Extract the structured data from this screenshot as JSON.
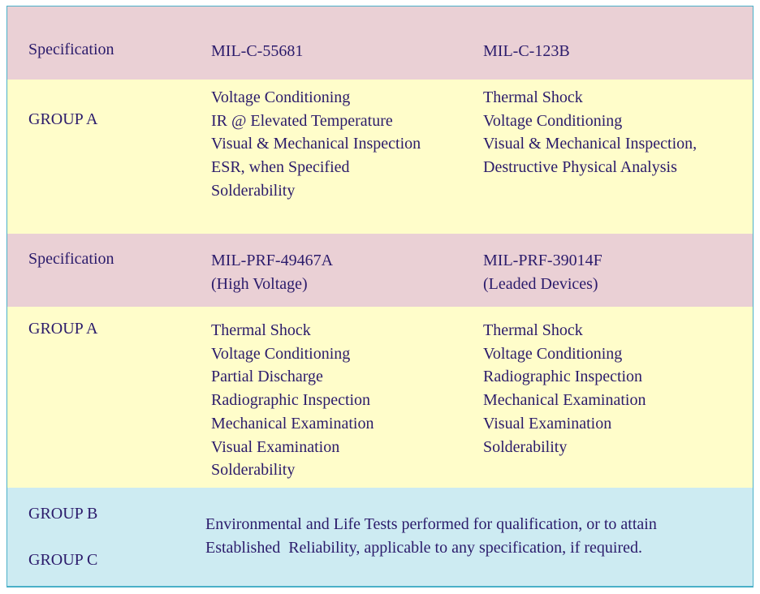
{
  "rows": [
    {
      "label": "Specification",
      "col2": [
        "MIL-C-55681"
      ],
      "col3": [
        "MIL-C-123B"
      ]
    },
    {
      "label": "GROUP A",
      "col2": [
        "Voltage Conditioning",
        "IR @ Elevated Temperature",
        "Visual & Mechanical Inspection",
        "ESR, when Specified",
        "Solderability"
      ],
      "col3": [
        "Thermal Shock",
        "Voltage Conditioning",
        "Visual & Mechanical Inspection,",
        "Destructive Physical Analysis"
      ]
    },
    {
      "label": "Specification",
      "col2": [
        "MIL-PRF-49467A",
        "(High Voltage)"
      ],
      "col3": [
        "MIL-PRF-39014F",
        "(Leaded Devices)"
      ]
    },
    {
      "label": "GROUP A",
      "col2": [
        "Thermal Shock",
        "Voltage Conditioning",
        "Partial Discharge",
        "Radiographic Inspection",
        "Mechanical Examination",
        "Visual Examination",
        "Solderability"
      ],
      "col3": [
        "Thermal Shock",
        "Voltage Conditioning",
        "Radiographic Inspection",
        "Mechanical Examination",
        "Visual Examination",
        "Solderability"
      ]
    }
  ],
  "footer": {
    "group_b": "GROUP B",
    "group_c": "GROUP C",
    "text": [
      "Environmental and Life Tests performed for qualification, or to attain",
      "Established  Reliability, applicable to any specification, if required."
    ]
  }
}
